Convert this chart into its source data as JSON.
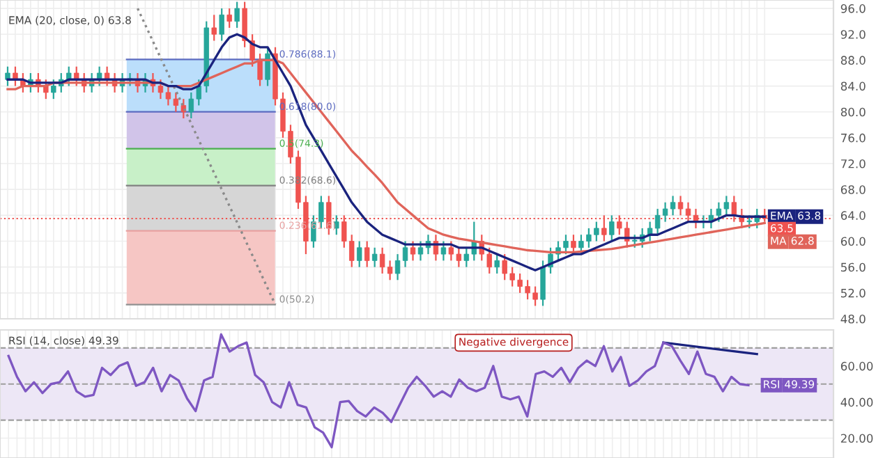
{
  "chart_data": [
    {
      "type": "candlestick",
      "annotations": [
        "EMA (20, close, 0) 63.8",
        {
          "text": "63.8",
          "y": 63.8
        },
        {
          "text": "62.8",
          "y": 62.8
        }
      ],
      "categories": [
        null,
        null,
        null,
        null,
        null,
        null,
        null,
        null,
        null,
        null,
        null,
        null,
        null,
        null,
        null,
        null,
        null,
        null,
        null,
        null,
        null,
        null,
        null,
        null,
        null,
        null,
        null,
        null,
        null,
        null,
        null,
        null,
        null,
        null,
        null,
        null,
        null,
        null,
        null,
        null,
        null,
        null,
        null,
        null,
        null,
        null,
        null,
        null,
        null,
        null,
        null,
        null,
        null,
        null,
        null,
        null,
        null,
        null,
        null,
        null,
        null,
        null,
        null,
        null,
        null,
        null,
        null,
        null,
        null,
        null,
        null,
        null,
        null,
        null,
        null,
        null,
        null,
        null,
        null,
        null,
        null,
        null,
        null,
        null,
        null,
        null,
        null,
        null,
        null,
        null,
        null,
        null,
        null,
        null,
        null,
        null,
        null,
        null,
        null,
        null
      ],
      "ohlc": [
        [
          85,
          87,
          84,
          86
        ],
        [
          86,
          87,
          84,
          85
        ],
        [
          85,
          86,
          83,
          84
        ],
        [
          84,
          86,
          83,
          85
        ],
        [
          85,
          86,
          83,
          84
        ],
        [
          84,
          85,
          82,
          83
        ],
        [
          83,
          85,
          82,
          84
        ],
        [
          84,
          86,
          83,
          85
        ],
        [
          85,
          87,
          84,
          86
        ],
        [
          86,
          87,
          84,
          85
        ],
        [
          85,
          86,
          83,
          84
        ],
        [
          84,
          86,
          83,
          85
        ],
        [
          85,
          87,
          84,
          86
        ],
        [
          86,
          87,
          84,
          85
        ],
        [
          85,
          86,
          83,
          84
        ],
        [
          84,
          86,
          83,
          85
        ],
        [
          85,
          86,
          84,
          85
        ],
        [
          85,
          86,
          83,
          84
        ],
        [
          84,
          86,
          83,
          85
        ],
        [
          85,
          86,
          83,
          84
        ],
        [
          84,
          85,
          82,
          83
        ],
        [
          83,
          84,
          81,
          82
        ],
        [
          82,
          83,
          80,
          81
        ],
        [
          81,
          82,
          79,
          80
        ],
        [
          80,
          83,
          79,
          82
        ],
        [
          82,
          85,
          81,
          84
        ],
        [
          84,
          94,
          83,
          93
        ],
        [
          93,
          95,
          91,
          92
        ],
        [
          92,
          96,
          91,
          95
        ],
        [
          95,
          96,
          93,
          94
        ],
        [
          94,
          97,
          93,
          96
        ],
        [
          96,
          97,
          90,
          91
        ],
        [
          91,
          92,
          87,
          88
        ],
        [
          88,
          89,
          84,
          85
        ],
        [
          85,
          90,
          84,
          89
        ],
        [
          89,
          90,
          81,
          82
        ],
        [
          82,
          83,
          76,
          77
        ],
        [
          77,
          78,
          72,
          73
        ],
        [
          73,
          74,
          65,
          66
        ],
        [
          66,
          67,
          58,
          60
        ],
        [
          60,
          64,
          59,
          63
        ],
        [
          63,
          67,
          62,
          66
        ],
        [
          66,
          67,
          61,
          62
        ],
        [
          62,
          64,
          61,
          63
        ],
        [
          63,
          64,
          59,
          60
        ],
        [
          60,
          61,
          56,
          57
        ],
        [
          57,
          60,
          56,
          59
        ],
        [
          59,
          60,
          56,
          57
        ],
        [
          57,
          59,
          56,
          58
        ],
        [
          58,
          59,
          55,
          56
        ],
        [
          56,
          57,
          54,
          55
        ],
        [
          55,
          58,
          54,
          57
        ],
        [
          57,
          60,
          56,
          59
        ],
        [
          59,
          60,
          57,
          58
        ],
        [
          58,
          60,
          57,
          59
        ],
        [
          59,
          61,
          58,
          60
        ],
        [
          60,
          61,
          57,
          58
        ],
        [
          58,
          60,
          57,
          59
        ],
        [
          59,
          60,
          57,
          58
        ],
        [
          58,
          59,
          56,
          57
        ],
        [
          57,
          59,
          56,
          58
        ],
        [
          58,
          63,
          57,
          60
        ],
        [
          60,
          61,
          57,
          58
        ],
        [
          58,
          59,
          55,
          56
        ],
        [
          56,
          58,
          55,
          57
        ],
        [
          57,
          58,
          54,
          55
        ],
        [
          55,
          56,
          53,
          54
        ],
        [
          54,
          55,
          52,
          53
        ],
        [
          53,
          54,
          51,
          52
        ],
        [
          52,
          53,
          50,
          51
        ],
        [
          51,
          57,
          50,
          56
        ],
        [
          56,
          59,
          55,
          58
        ],
        [
          58,
          60,
          57,
          59
        ],
        [
          59,
          61,
          58,
          60
        ],
        [
          60,
          61,
          58,
          59
        ],
        [
          59,
          61,
          58,
          60
        ],
        [
          60,
          62,
          59,
          61
        ],
        [
          61,
          63,
          60,
          62
        ],
        [
          62,
          64,
          60,
          61
        ],
        [
          61,
          64,
          60,
          63
        ],
        [
          63,
          64,
          61,
          62
        ],
        [
          62,
          63,
          59,
          60
        ],
        [
          60,
          61,
          59,
          60
        ],
        [
          60,
          62,
          59,
          61
        ],
        [
          61,
          63,
          60,
          62
        ],
        [
          62,
          65,
          61,
          64
        ],
        [
          64,
          66,
          63,
          65
        ],
        [
          65,
          67,
          64,
          66
        ],
        [
          66,
          67,
          64,
          65
        ],
        [
          65,
          66,
          63,
          64
        ],
        [
          64,
          65,
          62,
          63
        ],
        [
          63,
          64,
          62,
          63
        ],
        [
          63,
          65,
          62,
          64
        ],
        [
          64,
          66,
          63,
          65
        ],
        [
          65,
          67,
          64,
          66
        ],
        [
          66,
          67,
          63,
          64
        ],
        [
          64,
          65,
          62,
          63
        ],
        [
          63,
          64,
          62,
          63
        ],
        [
          63,
          65,
          62,
          64
        ],
        [
          64,
          65,
          63,
          63.5
        ]
      ],
      "series": [
        {
          "name": "EMA",
          "type": "line",
          "color": "#1a237e",
          "values": [
            85,
            85,
            85,
            84.5,
            84.5,
            84.5,
            84.5,
            84.5,
            85,
            85,
            85,
            85,
            85,
            85,
            85,
            85,
            85,
            85,
            85,
            84.5,
            84.5,
            84,
            84,
            83.5,
            83.5,
            84,
            86,
            88,
            90,
            91.5,
            92,
            91.5,
            90.5,
            90,
            90,
            88,
            86,
            84,
            81,
            78,
            76,
            74,
            72,
            70,
            68,
            66,
            64.5,
            63,
            62,
            61,
            60.5,
            60,
            59.5,
            59.5,
            59.5,
            59.5,
            59.5,
            59.5,
            59.5,
            59,
            59,
            59,
            59,
            58.5,
            58,
            57.5,
            57,
            56.5,
            56,
            55.5,
            56,
            56.5,
            57,
            57.5,
            58,
            58,
            58.5,
            59,
            59.5,
            60,
            60.5,
            60.5,
            60.5,
            60.5,
            61,
            61,
            61.5,
            62,
            62.5,
            63,
            63,
            63,
            63,
            63.5,
            64,
            64,
            63.8,
            63.8,
            63.8,
            63.8
          ]
        },
        {
          "name": "MA",
          "type": "line",
          "color": "#e0645a",
          "values": [
            83.5,
            83.5,
            84,
            84,
            84,
            84,
            84.5,
            84.5,
            84.5,
            84.5,
            84.5,
            84.5,
            84.5,
            84.5,
            84.5,
            84.5,
            84.5,
            84.5,
            84.5,
            84.5,
            84.5,
            84,
            84,
            84,
            84,
            84.5,
            85,
            85.5,
            86,
            86.5,
            87,
            87.5,
            87.5,
            88,
            88,
            88,
            87.5,
            86,
            84.5,
            83,
            81.5,
            80,
            78.5,
            77,
            75.5,
            74,
            72.8,
            71.5,
            70.3,
            69,
            67.5,
            66,
            65,
            64,
            63,
            62,
            61.5,
            61,
            60.7,
            60.4,
            60.2,
            60,
            59.8,
            59.6,
            59.4,
            59.2,
            59,
            58.8,
            58.6,
            58.5,
            58.4,
            58.3,
            58.3,
            58.3,
            58.3,
            58.4,
            58.5,
            58.6,
            58.7,
            58.8,
            59,
            59.2,
            59.4,
            59.6,
            59.8,
            60,
            60.2,
            60.4,
            60.6,
            60.8,
            61,
            61.2,
            61.4,
            61.6,
            61.8,
            62,
            62.2,
            62.4,
            62.6,
            62.8
          ]
        },
        {
          "type": "line",
          "color": "#8a8a8a",
          "line_style": "dotted",
          "values": [
            null,
            null,
            null,
            null,
            null,
            null,
            null,
            null,
            null,
            null,
            null,
            null,
            null,
            null,
            null,
            null,
            null,
            96,
            null,
            null,
            null,
            null,
            null,
            null,
            null,
            null,
            null,
            null,
            null,
            null,
            null,
            null,
            null,
            null,
            null,
            50.2,
            null,
            null,
            null,
            null,
            null,
            null,
            null,
            null,
            null,
            null,
            null,
            null,
            null,
            null,
            null,
            null,
            null,
            null,
            null,
            null,
            null,
            null,
            null,
            null,
            null,
            null,
            null,
            null,
            null,
            null,
            null,
            null,
            null,
            null,
            null,
            null,
            null,
            null,
            null,
            null,
            null,
            null,
            null,
            null,
            null,
            null,
            null,
            null,
            null,
            null,
            null,
            null,
            null,
            null,
            null,
            null,
            null,
            null,
            null,
            null,
            null,
            null,
            null,
            null
          ]
        }
      ],
      "bands": [
        {
          "axis": "y",
          "from": 80.0,
          "to": 88.1,
          "color": "#bbdefb"
        },
        {
          "axis": "y",
          "from": 74.3,
          "to": 80.0,
          "color": "#d1c4e9"
        },
        {
          "axis": "y",
          "from": 68.6,
          "to": 74.3,
          "color": "#c8f0c8"
        },
        {
          "axis": "y",
          "from": 61.6,
          "to": 68.6,
          "color": "#d6d6d6"
        },
        {
          "axis": "y",
          "from": 50.2,
          "to": 61.6,
          "color": "#f6c6c4"
        }
      ],
      "ref_lines": [
        {
          "axis": "y",
          "value": 88.1,
          "label": "0.786(88.1)",
          "color": "#5c6bc0"
        },
        {
          "axis": "y",
          "value": 80.0,
          "label": "0.618(80.0)",
          "color": "#5c6bc0"
        },
        {
          "axis": "y",
          "value": 74.3,
          "label": "0.5(74.3)",
          "color": "#4caf50"
        },
        {
          "axis": "y",
          "value": 68.6,
          "label": "0.382(68.6)",
          "color": "#808080"
        },
        {
          "axis": "y",
          "value": 61.6,
          "label": "0.236(61.6)",
          "color": "#e8a0a0"
        },
        {
          "axis": "y",
          "value": 50.2,
          "label": "0(50.2)",
          "color": "#909090"
        },
        {
          "axis": "y",
          "value": 63.5,
          "label": "63.5",
          "color": "#ef5350",
          "line_style": "dotted"
        }
      ],
      "ylim": [
        48,
        97.3
      ],
      "yticks": [
        {
          "value": 48,
          "label": "48.0"
        },
        {
          "value": 52,
          "label": "52.0"
        },
        {
          "value": 56,
          "label": "56.0"
        },
        {
          "value": 60,
          "label": "60.0"
        },
        {
          "value": 64,
          "label": "64.0"
        },
        {
          "value": 68,
          "label": "68.0"
        },
        {
          "value": 72,
          "label": "72.0"
        },
        {
          "value": 76,
          "label": "76.0"
        },
        {
          "value": 80,
          "label": "80.0"
        },
        {
          "value": 84,
          "label": "84.0"
        },
        {
          "value": 88,
          "label": "88.0"
        },
        {
          "value": 92,
          "label": "92.0"
        },
        {
          "value": 96,
          "label": "96.0"
        }
      ],
      "grid": true,
      "tick_labels": "y",
      "legend": "right"
    },
    {
      "type": "line",
      "annotations": [
        "RSI (14, close) 49.39",
        "Negative divergence",
        {
          "text": "49.39",
          "y": 49.39
        }
      ],
      "categories": [
        null,
        null,
        null,
        null,
        null,
        null,
        null,
        null,
        null,
        null,
        null,
        null,
        null,
        null,
        null,
        null,
        null,
        null,
        null,
        null,
        null,
        null,
        null,
        null,
        null,
        null,
        null,
        null,
        null,
        null,
        null,
        null,
        null,
        null,
        null,
        null,
        null,
        null,
        null,
        null,
        null,
        null,
        null,
        null,
        null,
        null,
        null,
        null,
        null,
        null,
        null,
        null,
        null,
        null,
        null,
        null,
        null,
        null,
        null,
        null,
        null,
        null,
        null,
        null,
        null,
        null,
        null,
        null,
        null,
        null,
        null,
        null,
        null,
        null,
        null,
        null,
        null,
        null,
        null,
        null,
        null,
        null,
        null,
        null,
        null,
        null,
        null,
        null,
        null
      ],
      "series": [
        {
          "name": "RSI",
          "color": "#7e57c2",
          "values": [
            65.6,
            54,
            46,
            51,
            45,
            50,
            51,
            57,
            46,
            43,
            44,
            59,
            55,
            60,
            62,
            49,
            51,
            59,
            46,
            55,
            52,
            42,
            35,
            52,
            54,
            77.5,
            68,
            71,
            73,
            55,
            51,
            40,
            37,
            51,
            38.5,
            37,
            26,
            23,
            15,
            40,
            40.6,
            35,
            32,
            37,
            34,
            29,
            38.5,
            48,
            54,
            49,
            43,
            46,
            43,
            52.5,
            48,
            46,
            48,
            60,
            43,
            41.5,
            43,
            32,
            55.6,
            57,
            54,
            59,
            51,
            59,
            63,
            60,
            71,
            57,
            65,
            49,
            52,
            57,
            60,
            73,
            71,
            63,
            55.6,
            68,
            55.6,
            54,
            46,
            54,
            50,
            49.39,
            null
          ]
        },
        {
          "color": "#1a237e",
          "values": [
            null,
            null,
            null,
            null,
            null,
            null,
            null,
            null,
            null,
            null,
            null,
            null,
            null,
            null,
            null,
            null,
            null,
            null,
            null,
            null,
            null,
            null,
            null,
            null,
            null,
            null,
            null,
            null,
            null,
            null,
            null,
            null,
            null,
            null,
            null,
            null,
            null,
            null,
            null,
            null,
            null,
            null,
            null,
            null,
            null,
            null,
            null,
            null,
            null,
            null,
            null,
            null,
            null,
            null,
            null,
            null,
            null,
            null,
            null,
            null,
            null,
            null,
            null,
            null,
            null,
            null,
            null,
            null,
            null,
            null,
            null,
            null,
            null,
            null,
            null,
            null,
            null,
            73,
            null,
            null,
            null,
            null,
            null,
            null,
            null,
            null,
            null,
            null,
            66.6
          ]
        }
      ],
      "bands": [
        {
          "axis": "y",
          "from": 30,
          "to": 70,
          "color": "#ede7f6"
        }
      ],
      "ref_lines": [
        {
          "axis": "y",
          "value": 70,
          "color": "#9e9e9e",
          "line_style": "dashed"
        },
        {
          "axis": "y",
          "value": 50,
          "color": "#9e9e9e",
          "line_style": "dashed"
        },
        {
          "axis": "y",
          "value": 30,
          "color": "#9e9e9e",
          "line_style": "dashed"
        }
      ],
      "ylim": [
        9,
        80
      ],
      "yticks": [
        {
          "value": 20,
          "label": "20.00"
        },
        {
          "value": 40,
          "label": "40.00"
        },
        {
          "value": 60,
          "label": "60.00"
        }
      ],
      "grid": true,
      "tick_labels": "y",
      "legend": "right"
    }
  ]
}
